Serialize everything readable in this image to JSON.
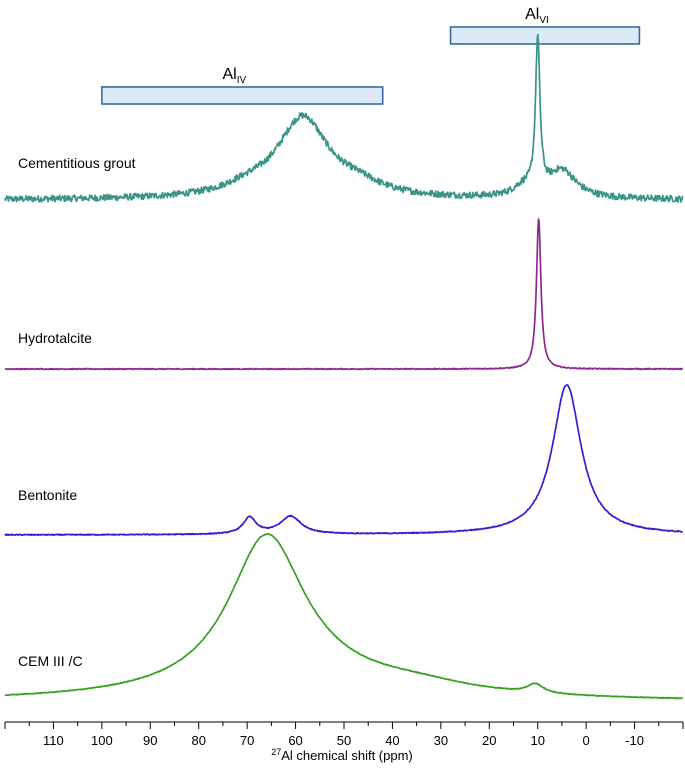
{
  "chart_data": {
    "type": "line",
    "title": "",
    "xlabel": {
      "superscript": "27",
      "text": "Al chemical shift (ppm)"
    },
    "ylabel": "",
    "x_axis": {
      "range": [
        120,
        -20
      ],
      "reversed": true,
      "ticks": [
        110,
        100,
        90,
        80,
        70,
        60,
        50,
        40,
        30,
        20,
        10,
        0,
        -10
      ],
      "tick_labels": [
        "110",
        "100",
        "90",
        "80",
        "70",
        "60",
        "50",
        "40",
        "30",
        "20",
        "10",
        "0",
        "-10"
      ]
    },
    "regions": [
      {
        "base": "Al",
        "sub": "IV",
        "x_range": [
          100,
          42
        ]
      },
      {
        "base": "Al",
        "sub": "VI",
        "x_range": [
          28,
          -11
        ]
      }
    ],
    "series": [
      {
        "name": "Cementitious grout",
        "color": "#3a9488",
        "noise": 0.035,
        "baseline": 0.02,
        "peaks": [
          {
            "center": 58.5,
            "height": 0.87,
            "width": 6.5
          },
          {
            "center": 47,
            "height": 0.1,
            "width": 6
          },
          {
            "center": 70,
            "height": 0.08,
            "width": 6
          },
          {
            "center": 10,
            "height": 1.62,
            "width": 0.55
          },
          {
            "center": 5,
            "height": 0.3,
            "width": 3.5
          },
          {
            "center": 13,
            "height": 0.1,
            "width": 2.5
          }
        ]
      },
      {
        "name": "Hydrotalcite",
        "color": "#8b2a8e",
        "noise": 0.003,
        "baseline": 0,
        "peaks": [
          {
            "center": 9.8,
            "height": 1.0,
            "width": 0.55
          }
        ]
      },
      {
        "name": "Bentonite",
        "color": "#2f1fd0",
        "noise": 0.003,
        "baseline": 0,
        "peaks": [
          {
            "center": 69.5,
            "height": 0.11,
            "width": 1.6
          },
          {
            "center": 61,
            "height": 0.12,
            "width": 2.6
          },
          {
            "center": 4,
            "height": 1.0,
            "width": 3.6
          }
        ]
      },
      {
        "name": "CEM III /C",
        "color": "#3aa020",
        "noise": 0.002,
        "baseline": 0,
        "peaks": [
          {
            "center": 66,
            "height": 0.83,
            "width": 9.5
          },
          {
            "center": 60,
            "height": 0.1,
            "width": 22
          },
          {
            "center": 35,
            "height": 0.05,
            "width": 15
          },
          {
            "center": 10.5,
            "height": 0.05,
            "width": 2
          }
        ]
      }
    ]
  }
}
